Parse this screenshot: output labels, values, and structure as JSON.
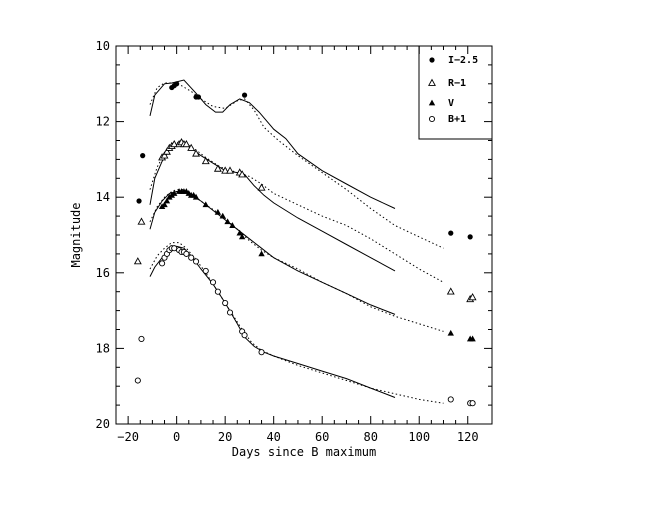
{
  "chart_data": {
    "type": "scatter",
    "title": "",
    "xlabel": "Days since B maximum",
    "ylabel": "Magnitude",
    "xlim": [
      -25,
      130
    ],
    "ylim": [
      20,
      10
    ],
    "y_inverted": true,
    "legend_position": "top-right",
    "grid": false,
    "x_ticks": [
      -20,
      0,
      20,
      40,
      60,
      80,
      100,
      120
    ],
    "x_tick_labels": [
      "−20",
      "0",
      "20",
      "40",
      "60",
      "80",
      "100",
      "120"
    ],
    "y_ticks": [
      10,
      12,
      14,
      16,
      18,
      20
    ],
    "y_tick_labels": [
      "10",
      "12",
      "14",
      "16",
      "18",
      "20"
    ],
    "series": [
      {
        "name": "I−2.5",
        "marker": "filled-circle",
        "points": [
          [
            -15.5,
            14.1
          ],
          [
            -14,
            12.9
          ],
          [
            -2,
            11.1
          ],
          [
            -1,
            11.05
          ],
          [
            0,
            11.0
          ],
          [
            8,
            11.35
          ],
          [
            9,
            11.35
          ],
          [
            28,
            11.3
          ],
          [
            113,
            14.95
          ],
          [
            121,
            15.05
          ]
        ],
        "model_solid": [
          [
            -11,
            11.85
          ],
          [
            -9,
            11.3
          ],
          [
            -5,
            11.0
          ],
          [
            -2,
            10.98
          ],
          [
            0,
            10.95
          ],
          [
            3,
            10.9
          ],
          [
            8,
            11.25
          ],
          [
            12,
            11.55
          ],
          [
            16,
            11.75
          ],
          [
            19,
            11.75
          ],
          [
            22,
            11.55
          ],
          [
            26,
            11.4
          ],
          [
            30,
            11.5
          ],
          [
            34,
            11.75
          ],
          [
            40,
            12.2
          ],
          [
            45,
            12.45
          ],
          [
            50,
            12.85
          ],
          [
            60,
            13.3
          ],
          [
            70,
            13.65
          ],
          [
            80,
            14.0
          ],
          [
            90,
            14.3
          ]
        ],
        "model_dotted": [
          [
            -11,
            11.55
          ],
          [
            -8,
            11.1
          ],
          [
            -5,
            10.98
          ],
          [
            -2,
            10.98
          ],
          [
            2,
            11.05
          ],
          [
            6,
            11.2
          ],
          [
            10,
            11.4
          ],
          [
            15,
            11.6
          ],
          [
            20,
            11.65
          ],
          [
            25,
            11.45
          ],
          [
            28,
            11.4
          ],
          [
            32,
            11.7
          ],
          [
            36,
            12.15
          ],
          [
            42,
            12.5
          ],
          [
            50,
            12.9
          ],
          [
            60,
            13.35
          ],
          [
            70,
            13.8
          ],
          [
            80,
            14.3
          ],
          [
            90,
            14.75
          ],
          [
            100,
            15.05
          ],
          [
            110,
            15.35
          ]
        ]
      },
      {
        "name": "R−1",
        "marker": "open-triangle",
        "points": [
          [
            -16,
            15.7
          ],
          [
            -14.5,
            14.65
          ],
          [
            -6,
            12.95
          ],
          [
            -5,
            12.9
          ],
          [
            -4,
            12.8
          ],
          [
            -3,
            12.7
          ],
          [
            -2,
            12.65
          ],
          [
            -1,
            12.6
          ],
          [
            1,
            12.6
          ],
          [
            2,
            12.55
          ],
          [
            3,
            12.6
          ],
          [
            4,
            12.6
          ],
          [
            6,
            12.7
          ],
          [
            8,
            12.85
          ],
          [
            12,
            13.05
          ],
          [
            17,
            13.25
          ],
          [
            20,
            13.3
          ],
          [
            22,
            13.3
          ],
          [
            26,
            13.35
          ],
          [
            27,
            13.4
          ],
          [
            35,
            13.75
          ],
          [
            113,
            16.5
          ],
          [
            121,
            16.7
          ],
          [
            122,
            16.65
          ]
        ],
        "model_solid": [
          [
            -11,
            14.2
          ],
          [
            -9,
            13.5
          ],
          [
            -6,
            13.05
          ],
          [
            -3,
            12.75
          ],
          [
            0,
            12.6
          ],
          [
            3,
            12.6
          ],
          [
            6,
            12.7
          ],
          [
            10,
            12.9
          ],
          [
            15,
            13.1
          ],
          [
            20,
            13.3
          ],
          [
            25,
            13.35
          ],
          [
            28,
            13.4
          ],
          [
            32,
            13.7
          ],
          [
            36,
            13.95
          ],
          [
            40,
            14.15
          ],
          [
            50,
            14.55
          ],
          [
            60,
            14.9
          ],
          [
            70,
            15.25
          ],
          [
            80,
            15.6
          ],
          [
            90,
            15.95
          ]
        ],
        "model_dotted": [
          [
            -11,
            13.8
          ],
          [
            -8,
            13.2
          ],
          [
            -5,
            12.85
          ],
          [
            -2,
            12.65
          ],
          [
            0,
            12.55
          ],
          [
            3,
            12.55
          ],
          [
            7,
            12.7
          ],
          [
            12,
            12.95
          ],
          [
            18,
            13.2
          ],
          [
            25,
            13.35
          ],
          [
            30,
            13.45
          ],
          [
            35,
            13.65
          ],
          [
            40,
            13.9
          ],
          [
            50,
            14.2
          ],
          [
            60,
            14.5
          ],
          [
            70,
            14.75
          ],
          [
            80,
            15.1
          ],
          [
            90,
            15.5
          ],
          [
            100,
            15.9
          ],
          [
            110,
            16.25
          ]
        ]
      },
      {
        "name": "V",
        "marker": "filled-triangle",
        "points": [
          [
            -6,
            14.25
          ],
          [
            -5,
            14.2
          ],
          [
            -4,
            14.1
          ],
          [
            -3,
            14.0
          ],
          [
            -2,
            13.95
          ],
          [
            -1,
            13.9
          ],
          [
            1,
            13.85
          ],
          [
            2,
            13.85
          ],
          [
            3,
            13.85
          ],
          [
            4,
            13.85
          ],
          [
            5,
            13.9
          ],
          [
            6,
            13.95
          ],
          [
            7,
            13.95
          ],
          [
            8,
            14.0
          ],
          [
            12,
            14.2
          ],
          [
            17,
            14.4
          ],
          [
            19,
            14.5
          ],
          [
            21,
            14.65
          ],
          [
            23,
            14.75
          ],
          [
            26,
            14.95
          ],
          [
            27,
            15.05
          ],
          [
            35,
            15.5
          ],
          [
            113,
            17.6
          ],
          [
            121,
            17.75
          ],
          [
            122,
            17.75
          ]
        ],
        "model_solid": [
          [
            -11,
            14.85
          ],
          [
            -9,
            14.4
          ],
          [
            -6,
            14.1
          ],
          [
            -3,
            13.9
          ],
          [
            0,
            13.85
          ],
          [
            3,
            13.85
          ],
          [
            6,
            13.95
          ],
          [
            10,
            14.1
          ],
          [
            15,
            14.35
          ],
          [
            20,
            14.6
          ],
          [
            25,
            14.85
          ],
          [
            30,
            15.1
          ],
          [
            35,
            15.35
          ],
          [
            40,
            15.6
          ],
          [
            50,
            15.95
          ],
          [
            60,
            16.25
          ],
          [
            70,
            16.55
          ],
          [
            80,
            16.85
          ],
          [
            90,
            17.1
          ]
        ],
        "model_dotted": [
          [
            -11,
            14.65
          ],
          [
            -8,
            14.25
          ],
          [
            -5,
            14.0
          ],
          [
            -2,
            13.85
          ],
          [
            0,
            13.8
          ],
          [
            3,
            13.8
          ],
          [
            7,
            13.95
          ],
          [
            12,
            14.2
          ],
          [
            18,
            14.45
          ],
          [
            25,
            14.85
          ],
          [
            30,
            15.15
          ],
          [
            35,
            15.4
          ],
          [
            40,
            15.6
          ],
          [
            50,
            15.9
          ],
          [
            60,
            16.25
          ],
          [
            70,
            16.55
          ],
          [
            80,
            16.9
          ],
          [
            90,
            17.15
          ],
          [
            100,
            17.35
          ],
          [
            110,
            17.55
          ]
        ]
      },
      {
        "name": "B+1",
        "marker": "open-circle",
        "points": [
          [
            -16,
            18.85
          ],
          [
            -14.5,
            17.75
          ],
          [
            -6,
            15.75
          ],
          [
            -5,
            15.6
          ],
          [
            -4,
            15.5
          ],
          [
            -3,
            15.4
          ],
          [
            -2,
            15.35
          ],
          [
            -1,
            15.35
          ],
          [
            1,
            15.4
          ],
          [
            2,
            15.45
          ],
          [
            3,
            15.45
          ],
          [
            4,
            15.5
          ],
          [
            6,
            15.6
          ],
          [
            8,
            15.7
          ],
          [
            12,
            15.95
          ],
          [
            15,
            16.25
          ],
          [
            17,
            16.5
          ],
          [
            20,
            16.8
          ],
          [
            22,
            17.05
          ],
          [
            27,
            17.55
          ],
          [
            28,
            17.65
          ],
          [
            35,
            18.1
          ],
          [
            113,
            19.35
          ],
          [
            121,
            19.45
          ],
          [
            122,
            19.45
          ]
        ],
        "model_solid": [
          [
            -11,
            16.1
          ],
          [
            -9,
            15.85
          ],
          [
            -6,
            15.6
          ],
          [
            -3,
            15.4
          ],
          [
            0,
            15.3
          ],
          [
            3,
            15.35
          ],
          [
            6,
            15.55
          ],
          [
            10,
            15.9
          ],
          [
            15,
            16.3
          ],
          [
            20,
            16.8
          ],
          [
            25,
            17.35
          ],
          [
            28,
            17.7
          ],
          [
            32,
            17.95
          ],
          [
            36,
            18.1
          ],
          [
            40,
            18.2
          ],
          [
            50,
            18.4
          ],
          [
            60,
            18.6
          ],
          [
            70,
            18.8
          ],
          [
            80,
            19.05
          ],
          [
            90,
            19.3
          ]
        ],
        "model_dotted": [
          [
            -11,
            15.9
          ],
          [
            -8,
            15.55
          ],
          [
            -5,
            15.35
          ],
          [
            -2,
            15.2
          ],
          [
            1,
            15.2
          ],
          [
            4,
            15.35
          ],
          [
            8,
            15.65
          ],
          [
            12,
            16.0
          ],
          [
            17,
            16.5
          ],
          [
            22,
            17.0
          ],
          [
            27,
            17.5
          ],
          [
            31,
            17.85
          ],
          [
            35,
            18.05
          ],
          [
            40,
            18.2
          ],
          [
            50,
            18.45
          ],
          [
            60,
            18.65
          ],
          [
            70,
            18.85
          ],
          [
            80,
            19.05
          ],
          [
            90,
            19.2
          ],
          [
            100,
            19.35
          ],
          [
            110,
            19.45
          ]
        ]
      }
    ]
  }
}
